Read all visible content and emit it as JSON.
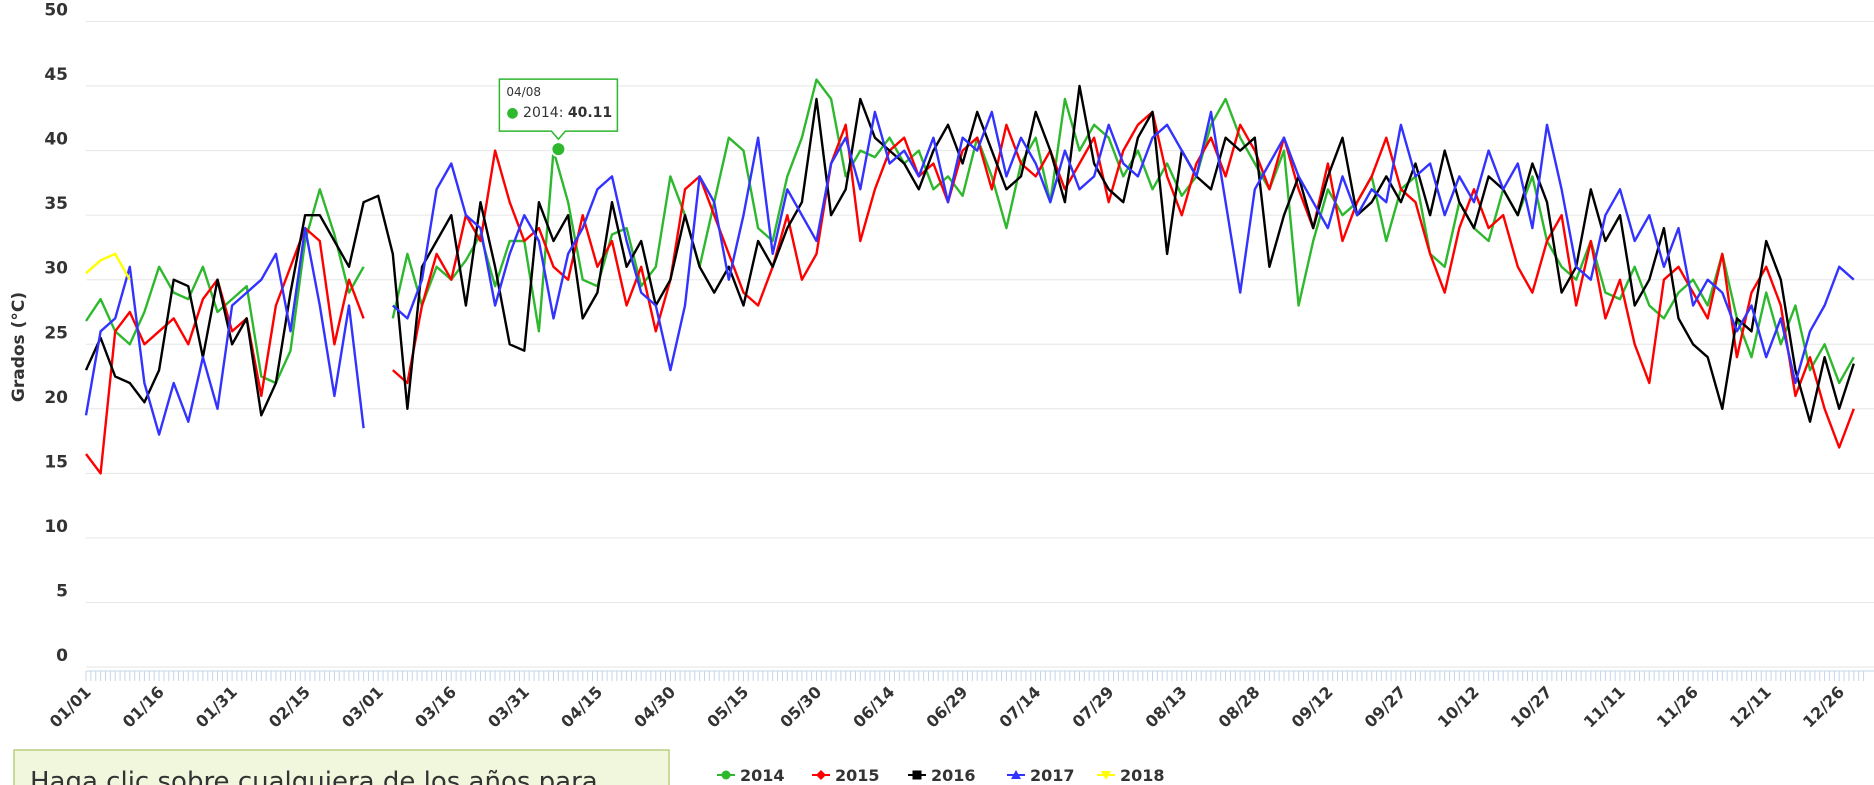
{
  "chart_data": {
    "type": "line",
    "y_axis_label": "Grados (°C)",
    "ylim": [
      0,
      50
    ],
    "yticks": [
      0,
      5,
      10,
      15,
      20,
      25,
      30,
      35,
      40,
      45,
      50
    ],
    "grid": true,
    "categories": [
      "01/01",
      null,
      null,
      null,
      null,
      "01/16",
      null,
      null,
      null,
      null,
      "01/31",
      null,
      null,
      null,
      null,
      "02/15",
      null,
      null,
      null,
      null,
      "03/01",
      null,
      null,
      null,
      null,
      "03/16",
      null,
      null,
      null,
      null,
      "03/31",
      null,
      null,
      null,
      null,
      "04/15",
      null,
      null,
      null,
      null,
      "04/30",
      null,
      null,
      null,
      null,
      "05/15",
      null,
      null,
      null,
      null,
      "05/30",
      null,
      null,
      null,
      null,
      "06/14",
      null,
      null,
      null,
      null,
      "06/29",
      null,
      null,
      null,
      null,
      "07/14",
      null,
      null,
      null,
      null,
      "07/29",
      null,
      null,
      null,
      null,
      "08/13",
      null,
      null,
      null,
      null,
      "08/28",
      null,
      null,
      null,
      null,
      "09/12",
      null,
      null,
      null,
      null,
      "09/27",
      null,
      null,
      null,
      null,
      "10/12",
      null,
      null,
      null,
      null,
      "10/27",
      null,
      null,
      null,
      null,
      "11/11",
      null,
      null,
      null,
      null,
      "11/26",
      null,
      null,
      null,
      null,
      "12/11",
      null,
      null,
      null,
      null,
      "12/26",
      null
    ],
    "series": [
      {
        "name": "2014",
        "color": "#2eb82e",
        "values": [
          26.8,
          28.5,
          26,
          25,
          27.5,
          31,
          29,
          28.5,
          31,
          27.5,
          28.5,
          29.5,
          22.5,
          22,
          24.5,
          33,
          37,
          33.5,
          29,
          31,
          null,
          27,
          32,
          28,
          31,
          30,
          31.5,
          33.5,
          29.5,
          33,
          33,
          26,
          40,
          36,
          30,
          29.5,
          33.5,
          34,
          29.5,
          31,
          38,
          35,
          31,
          36,
          41,
          40,
          34,
          33,
          38,
          41,
          45.5,
          44,
          38,
          40,
          39.5,
          41,
          39,
          40,
          37,
          38,
          36.5,
          41,
          38,
          34,
          39,
          41,
          36,
          44,
          40,
          42,
          41,
          38,
          40,
          37,
          39,
          36.5,
          38,
          42,
          44,
          41,
          39,
          37,
          40,
          28,
          33,
          37,
          35,
          36,
          38,
          33,
          37,
          38,
          32,
          31,
          36,
          34,
          33,
          37,
          35,
          38,
          33,
          31,
          30,
          33,
          29,
          28.5,
          31,
          28,
          27,
          29,
          30,
          28,
          32,
          27,
          24,
          29,
          25,
          28,
          23,
          25,
          22,
          24
        ]
      },
      {
        "name": "2015",
        "color": "#ff0000",
        "values": [
          16.5,
          15,
          26,
          27.5,
          25,
          26,
          27,
          25,
          28.5,
          30,
          26,
          27,
          21,
          28,
          31,
          34,
          33,
          25,
          30,
          27,
          null,
          23,
          22,
          28,
          32,
          30,
          35,
          33,
          40,
          36,
          33,
          34,
          31,
          30,
          35,
          31,
          33,
          28,
          31,
          26,
          30,
          37,
          38,
          35,
          32,
          29,
          28,
          31,
          35,
          30,
          32,
          39,
          42,
          33,
          37,
          40,
          41,
          38,
          39,
          36,
          40,
          41,
          37,
          42,
          39,
          38,
          40,
          37,
          39,
          41,
          36,
          40,
          42,
          43,
          38,
          35,
          39,
          41,
          38,
          42,
          40,
          37,
          41,
          37,
          34,
          39,
          33,
          36,
          38,
          41,
          37,
          36,
          32,
          29,
          34,
          37,
          34,
          35,
          31,
          29,
          33,
          35,
          28,
          33,
          27,
          30,
          25,
          22,
          30,
          31,
          29,
          27,
          32,
          24,
          29,
          31,
          28,
          21,
          24,
          20,
          17,
          20
        ]
      },
      {
        "name": "2016",
        "color": "#000000",
        "values": [
          23,
          25.5,
          22.5,
          22,
          20.5,
          23,
          30,
          29.5,
          24,
          30,
          25,
          27,
          19.5,
          22,
          29,
          35,
          35,
          33,
          31,
          36,
          36.5,
          32,
          20,
          31,
          33,
          35,
          28,
          36,
          31,
          25,
          24.5,
          36,
          33,
          35,
          27,
          29,
          36,
          31,
          33,
          28,
          30,
          35,
          31,
          29,
          31,
          28,
          33,
          31,
          34,
          36,
          44,
          35,
          37,
          44,
          41,
          40,
          39,
          37,
          40,
          42,
          39,
          43,
          40,
          37,
          38,
          43,
          40,
          36,
          45,
          39,
          37,
          36,
          41,
          43,
          32,
          40,
          38,
          37,
          41,
          40,
          41,
          31,
          35,
          38,
          34,
          38,
          41,
          35,
          36,
          38,
          36,
          39,
          35,
          40,
          36,
          34,
          38,
          37,
          35,
          39,
          36,
          29,
          31,
          37,
          33,
          35,
          28,
          30,
          34,
          27,
          25,
          24,
          20,
          27,
          26,
          33,
          30,
          23,
          19,
          24,
          20,
          23.5
        ]
      },
      {
        "name": "2017",
        "color": "#3333ff",
        "values": [
          19.5,
          26,
          27,
          31,
          22,
          18,
          22,
          19,
          24,
          20,
          28,
          29,
          30,
          32,
          26,
          34,
          28,
          21,
          28,
          18.5,
          null,
          28,
          27,
          30,
          37,
          39,
          35,
          34,
          28,
          32,
          35,
          33,
          27,
          32,
          34,
          37,
          38,
          33,
          29,
          28,
          23,
          28,
          38,
          36,
          30,
          35,
          41,
          32,
          37,
          35,
          33,
          39,
          41,
          37,
          43,
          39,
          40,
          38,
          41,
          36,
          41,
          40,
          43,
          38,
          41,
          39,
          36,
          40,
          37,
          38,
          42,
          39,
          38,
          41,
          42,
          40,
          38,
          43,
          36,
          29,
          37,
          39,
          41,
          38,
          36,
          34,
          38,
          35,
          37,
          36,
          42,
          38,
          39,
          35,
          38,
          36,
          40,
          37,
          39,
          34,
          42,
          37,
          31,
          30,
          35,
          37,
          33,
          35,
          31,
          34,
          28,
          30,
          29,
          26,
          28,
          24,
          27,
          22,
          26,
          28,
          31,
          30
        ]
      },
      {
        "name": "2018",
        "color": "#ffff00",
        "values": [
          30.5,
          31.5,
          32,
          30,
          null,
          null,
          null,
          null,
          null,
          null,
          null,
          null,
          null,
          null,
          null,
          null,
          null,
          null,
          null,
          null,
          null,
          null,
          null,
          null,
          null,
          null,
          null,
          null,
          null,
          null,
          null,
          null,
          null,
          null,
          null,
          null,
          null,
          null,
          null,
          null,
          null,
          null,
          null,
          null,
          null,
          null,
          null,
          null,
          null,
          null,
          null,
          null,
          null,
          null,
          null,
          null,
          null,
          null,
          null,
          null,
          null,
          null,
          null,
          null,
          null,
          null,
          null,
          null,
          null,
          null,
          null,
          null,
          null,
          null,
          null,
          null,
          null,
          null,
          null,
          null,
          null,
          null,
          null,
          null,
          null,
          null,
          null,
          null,
          null,
          null,
          null,
          null,
          null,
          null,
          null,
          null,
          null,
          null,
          null,
          null,
          null,
          null,
          null,
          null,
          null,
          null,
          null,
          null,
          null,
          null,
          null,
          null,
          null,
          null,
          null,
          null,
          null,
          null,
          null,
          null,
          null,
          null
        ]
      }
    ],
    "tooltip": {
      "x": "04/08",
      "series": "2014",
      "value": 40.11
    },
    "note": "Haga clic sobre cualquiera de los años para"
  }
}
